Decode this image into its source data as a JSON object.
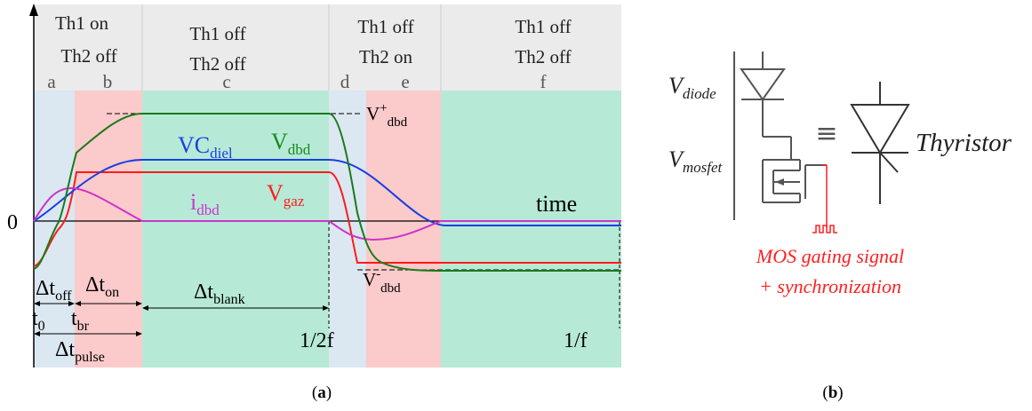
{
  "panel_a": {
    "caption_open": "(",
    "caption_letter": "a",
    "caption_close": ")",
    "phases": [
      {
        "letter": "a",
        "header_line1": "Th1 on",
        "header_line2": "Th2 off"
      },
      {
        "letter": "b",
        "header_line1": "",
        "header_line2": ""
      },
      {
        "letter": "c",
        "header_line1": "Th1 off",
        "header_line2": "Th2 off"
      },
      {
        "letter": "d",
        "header_line1": "Th1 off",
        "header_line2": "Th2 on"
      },
      {
        "letter": "e",
        "header_line1": "",
        "header_line2": ""
      },
      {
        "letter": "f",
        "header_line1": "Th1 off",
        "header_line2": "Th2 off"
      }
    ],
    "zero_label": "0",
    "time_label": "time",
    "curve_labels": {
      "vdbd_main": "V",
      "vdbd_sub": "dbd",
      "vcdiel_main": "VC",
      "vcdiel_sub": "diel",
      "vgaz_main": "V",
      "vgaz_sub": "gaz",
      "idbd_main": "i",
      "idbd_sub": "dbd",
      "vplus_main": "V",
      "vplus_sup": "+",
      "vplus_sub": "dbd",
      "vminus_main": "V",
      "vminus_sup": "-",
      "vminus_sub": "dbd"
    },
    "interval_labels": {
      "toff_main": "Δt",
      "toff_sub": "off",
      "ton_main": "Δt",
      "ton_sub": "on",
      "tblank_main": "Δt",
      "tblank_sub": "blank",
      "t0_main": "t",
      "t0_sub": "0",
      "tbr_main": "t",
      "tbr_sub": "br",
      "tpulse_main": "Δt",
      "tpulse_sub": "pulse",
      "half_period": "1/2f",
      "period": "1/f"
    },
    "colors": {
      "blue_band": "#dbe7f1",
      "pink_band": "#fbcaca",
      "green_band": "#b6ead7",
      "header_bg": "#ebebeb",
      "vdbd": "#1a7a1a",
      "vcdiel": "#1a3fe0",
      "vgaz": "#ff1a1a",
      "idbd": "#cc33cc"
    }
  },
  "panel_b": {
    "caption_open": "(",
    "caption_letter": "b",
    "caption_close": ")",
    "vdiode_main": "V",
    "vdiode_sub": "diode",
    "vmosfet_main": "V",
    "vmosfet_sub": "mosfet",
    "equiv_symbol": "≡",
    "thyristor_label": "Thyristor",
    "gating_line1": "MOS gating signal",
    "gating_line2": "+ synchronization",
    "colors": {
      "gating": "#ff2020",
      "symbol": "#444444"
    }
  }
}
